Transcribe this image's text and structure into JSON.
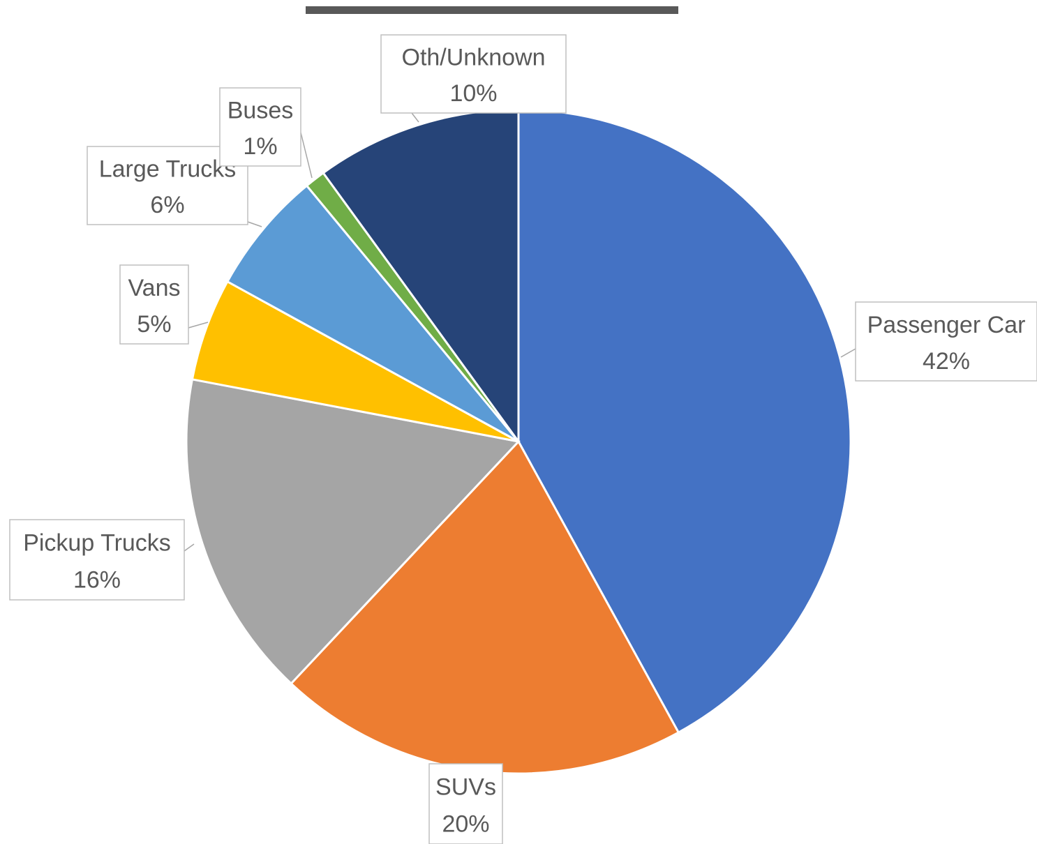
{
  "chart_data": {
    "type": "pie",
    "categories": [
      "Passenger Car",
      "SUVs",
      "Pickup Trucks",
      "Vans",
      "Large Trucks",
      "Buses",
      "Oth/Unknown"
    ],
    "values": [
      42,
      20,
      16,
      5,
      6,
      1,
      10
    ],
    "value_labels": [
      "42%",
      "20%",
      "16%",
      "5%",
      "6%",
      "1%",
      "10%"
    ],
    "colors": [
      "#4472c4",
      "#ed7d31",
      "#a5a5a5",
      "#ffc000",
      "#5b9bd5",
      "#70ad47",
      "#264478"
    ]
  }
}
